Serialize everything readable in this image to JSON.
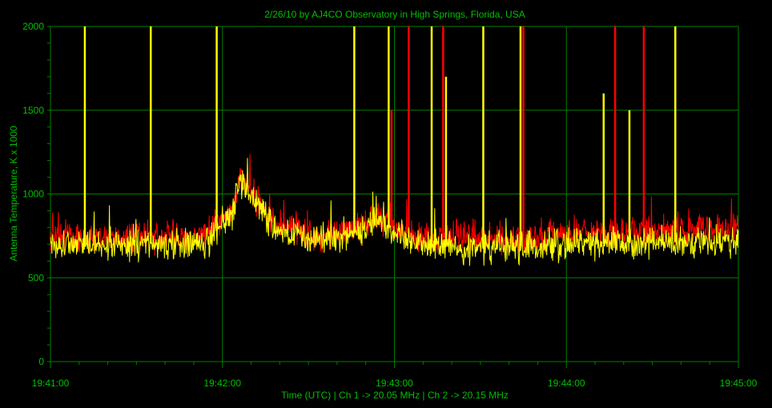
{
  "chart_data": {
    "type": "line",
    "title": "2/26/10  by  AJ4CO Observatory  in  High Springs, Florida, USA",
    "xlabel": "Time (UTC)  |  Ch 1 -> 20.05 MHz  |  Ch 2 -> 20.15 MHz",
    "ylabel": "Antenna Temperature, K x 1000",
    "xlim": [
      "19:41:00",
      "19:45:00"
    ],
    "ylim": [
      0,
      2000
    ],
    "x_ticks": [
      "19:41:00",
      "19:42:00",
      "19:43:00",
      "19:44:00",
      "19:45:00"
    ],
    "y_ticks": [
      "0",
      "500",
      "1000",
      "1500",
      "2000"
    ],
    "grid": true,
    "series": [
      {
        "channel": 1,
        "color": "#ffff00",
        "baseline": 700,
        "points": [
          [
            "19:41:00",
            700
          ],
          [
            "19:41:20",
            700
          ],
          [
            "19:41:40",
            705
          ],
          [
            "19:41:55",
            720
          ],
          [
            "19:42:04",
            900
          ],
          [
            "19:42:06",
            1100
          ],
          [
            "19:42:10",
            1000
          ],
          [
            "19:42:15",
            850
          ],
          [
            "19:42:20",
            780
          ],
          [
            "19:42:30",
            740
          ],
          [
            "19:42:40",
            730
          ],
          [
            "19:42:50",
            790
          ],
          [
            "19:42:55",
            850
          ],
          [
            "19:43:00",
            760
          ],
          [
            "19:43:10",
            700
          ],
          [
            "19:43:30",
            680
          ],
          [
            "19:44:00",
            700
          ],
          [
            "19:44:30",
            710
          ],
          [
            "19:45:00",
            720
          ]
        ],
        "spikes": [
          {
            "t": "19:41:12",
            "v": 2000
          },
          {
            "t": "19:41:35",
            "v": 2000
          },
          {
            "t": "19:41:58",
            "v": 2000
          },
          {
            "t": "19:42:46",
            "v": 2000
          },
          {
            "t": "19:42:58",
            "v": 2000
          },
          {
            "t": "19:43:13",
            "v": 2000
          },
          {
            "t": "19:43:18",
            "v": 1700
          },
          {
            "t": "19:43:31",
            "v": 2000
          },
          {
            "t": "19:43:44",
            "v": 2000
          },
          {
            "t": "19:44:13",
            "v": 1600
          },
          {
            "t": "19:44:22",
            "v": 1500
          },
          {
            "t": "19:44:38",
            "v": 2000
          }
        ]
      },
      {
        "channel": 2,
        "color": "#ff0000",
        "baseline": 740,
        "points": [
          [
            "19:41:00",
            740
          ],
          [
            "19:41:20",
            740
          ],
          [
            "19:41:40",
            745
          ],
          [
            "19:41:55",
            760
          ],
          [
            "19:42:04",
            920
          ],
          [
            "19:42:06",
            1120
          ],
          [
            "19:42:10",
            1020
          ],
          [
            "19:42:15",
            880
          ],
          [
            "19:42:20",
            800
          ],
          [
            "19:42:30",
            760
          ],
          [
            "19:42:40",
            760
          ],
          [
            "19:42:50",
            820
          ],
          [
            "19:42:55",
            870
          ],
          [
            "19:43:00",
            790
          ],
          [
            "19:43:10",
            740
          ],
          [
            "19:43:30",
            730
          ],
          [
            "19:44:00",
            760
          ],
          [
            "19:44:30",
            780
          ],
          [
            "19:45:00",
            790
          ]
        ],
        "spikes": [
          {
            "t": "19:42:59",
            "v": 1500
          },
          {
            "t": "19:43:05",
            "v": 2000
          },
          {
            "t": "19:43:17",
            "v": 2000
          },
          {
            "t": "19:43:45",
            "v": 2000
          },
          {
            "t": "19:44:17",
            "v": 2000
          },
          {
            "t": "19:44:27",
            "v": 2000
          }
        ]
      }
    ],
    "colors": {
      "background": "#000000",
      "grid": "#007f00",
      "text": "#00c000"
    }
  }
}
